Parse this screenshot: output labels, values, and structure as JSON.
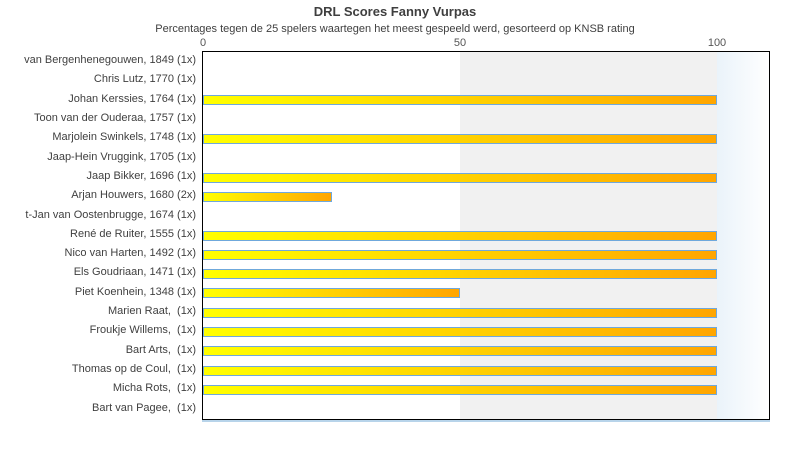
{
  "chart_data": {
    "type": "bar",
    "orientation": "horizontal",
    "title": "DRL Scores Fanny Vurpas",
    "subtitle": "Percentages tegen de 25 spelers waartegen het meest gespeeld werd, gesorteerd op KNSB rating",
    "xlabel": "",
    "ylabel": "",
    "x_ticks": [
      0,
      50,
      100
    ],
    "xlim": [
      0,
      110
    ],
    "grid": false,
    "legend": "none",
    "categories": [
      "van Bergenhenegouwen, 1849 (1x)",
      "Chris Lutz, 1770 (1x)",
      "Johan Kerssies, 1764 (1x)",
      "Toon van der Ouderaa, 1757 (1x)",
      "Marjolein Swinkels, 1748 (1x)",
      "Jaap-Hein Vruggink, 1705 (1x)",
      "Jaap Bikker, 1696 (1x)",
      "Arjan Houwers, 1680 (2x)",
      "t-Jan van Oostenbrugge, 1674 (1x)",
      "René de Ruiter, 1555 (1x)",
      "Nico van Harten, 1492 (1x)",
      "Els Goudriaan, 1471 (1x)",
      "Piet Koenhein, 1348 (1x)",
      "Marien Raat,  (1x)",
      "Froukje Willems,  (1x)",
      "Bart Arts,  (1x)",
      "Thomas op de Coul,  (1x)",
      "Micha Rots,  (1x)",
      "Bart van Pagee,  (1x)"
    ],
    "values": [
      0,
      0,
      100,
      0,
      100,
      0,
      100,
      25,
      0,
      100,
      100,
      100,
      50,
      100,
      100,
      100,
      100,
      100,
      0
    ],
    "background_bands": [
      {
        "from": 0,
        "to": 50,
        "style": "white"
      },
      {
        "from": 50,
        "to": 100,
        "style": "light-gray"
      },
      {
        "from": 100,
        "to": 110,
        "style": "light-blue-fade"
      }
    ],
    "colors": {
      "bar_gradient_start": "#ffff00",
      "bar_gradient_end": "#ffa500",
      "bar_border": "#6fa8dc",
      "band_mid": "#f1f1f1",
      "band_right_start": "#eaf3fa",
      "plot_border": "#000000",
      "axis_shadow": "#b8d4ea",
      "text": "#3f3f3f",
      "tick_text": "#555555"
    }
  }
}
